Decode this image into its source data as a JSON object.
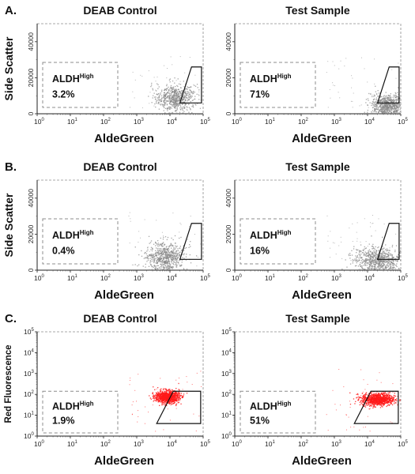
{
  "rows": [
    {
      "row_label": "A.",
      "ylabel": "Side Scatter",
      "yaxis": "linear",
      "panels": [
        {
          "title": "DEAB Control",
          "xlabel": "AldeGreen",
          "gate_label": "ALDH",
          "gate_sup": "High",
          "gate_value": "3.2%"
        },
        {
          "title": "Test Sample",
          "xlabel": "AldeGreen",
          "gate_label": "ALDH",
          "gate_sup": "High",
          "gate_value": "71%"
        }
      ]
    },
    {
      "row_label": "B.",
      "ylabel": "Side Scatter",
      "yaxis": "linear",
      "panels": [
        {
          "title": "DEAB Control",
          "xlabel": "AldeGreen",
          "gate_label": "ALDH",
          "gate_sup": "High",
          "gate_value": "0.4%"
        },
        {
          "title": "Test Sample",
          "xlabel": "AldeGreen",
          "gate_label": "ALDH",
          "gate_sup": "High",
          "gate_value": "16%"
        }
      ]
    },
    {
      "row_label": "C.",
      "ylabel": "Red Fluorescence",
      "yaxis": "log",
      "panels": [
        {
          "title": "DEAB Control",
          "xlabel": "AldeGreen",
          "gate_label": "ALDH",
          "gate_sup": "High",
          "gate_value": "1.9%"
        },
        {
          "title": "Test Sample",
          "xlabel": "AldeGreen",
          "gate_label": "ALDH",
          "gate_sup": "High",
          "gate_value": "51%"
        }
      ]
    }
  ],
  "axes": {
    "x_tick_base": "10",
    "x_tick_exponents": [
      "0",
      "1",
      "2",
      "3",
      "4",
      "5"
    ],
    "y_linear_ticks": [
      "0",
      "20000",
      "40000"
    ],
    "y_log_base": "10",
    "y_log_exponents": [
      "0",
      "1",
      "2",
      "3",
      "4",
      "5"
    ]
  },
  "colors": {
    "scatter_gray": "#8a8a8a",
    "scatter_red": "#ff1a1a",
    "gate_line": "#111111",
    "dashed_box": "#8c8c8c",
    "axis_border": "#8c8c8c"
  },
  "chart_data": [
    {
      "type": "scatter",
      "title": "DEAB Control",
      "xlabel": "AldeGreen",
      "ylabel": "Side Scatter",
      "x_scale": "log",
      "xlim": [
        1,
        100000
      ],
      "ylim": [
        0,
        50000
      ],
      "gate": "ALDHHigh",
      "gate_percent": 3.2,
      "series": [
        {
          "cluster_center": [
            14000,
            9000
          ],
          "spread_log10": 0.28,
          "spread_y": 4000,
          "count": 650
        }
      ]
    },
    {
      "type": "scatter",
      "title": "Test Sample",
      "xlabel": "AldeGreen",
      "ylabel": "Side Scatter",
      "x_scale": "log",
      "xlim": [
        1,
        100000
      ],
      "ylim": [
        0,
        50000
      ],
      "gate": "ALDHHigh",
      "gate_percent": 71,
      "series": [
        {
          "cluster_center": [
            40000,
            5000
          ],
          "spread_log10": 0.25,
          "spread_y": 3000,
          "count": 700
        }
      ]
    },
    {
      "type": "scatter",
      "title": "DEAB Control",
      "xlabel": "AldeGreen",
      "ylabel": "Side Scatter",
      "x_scale": "log",
      "xlim": [
        1,
        100000
      ],
      "ylim": [
        0,
        50000
      ],
      "gate": "ALDHHigh",
      "gate_percent": 0.4,
      "series": [
        {
          "cluster_center": [
            7000,
            8000
          ],
          "spread_log10": 0.3,
          "spread_y": 4000,
          "count": 650
        }
      ]
    },
    {
      "type": "scatter",
      "title": "Test Sample",
      "xlabel": "AldeGreen",
      "ylabel": "Side Scatter",
      "x_scale": "log",
      "xlim": [
        1,
        100000
      ],
      "ylim": [
        0,
        50000
      ],
      "gate": "ALDHHigh",
      "gate_percent": 16,
      "series": [
        {
          "cluster_center": [
            20000,
            6000
          ],
          "spread_log10": 0.35,
          "spread_y": 3500,
          "count": 700
        }
      ]
    },
    {
      "type": "scatter",
      "title": "DEAB Control",
      "xlabel": "AldeGreen",
      "ylabel": "Red Fluorescence",
      "x_scale": "log",
      "y_scale": "log",
      "xlim": [
        1,
        100000
      ],
      "ylim": [
        1,
        100000
      ],
      "gate": "ALDHHigh",
      "gate_percent": 1.9,
      "series": [
        {
          "cluster_center": [
            8000,
            80
          ],
          "spread_log10": 0.18,
          "spread_y_log10": 0.15,
          "count": 900
        }
      ]
    },
    {
      "type": "scatter",
      "title": "Test Sample",
      "xlabel": "AldeGreen",
      "ylabel": "Red Fluorescence",
      "x_scale": "log",
      "y_scale": "log",
      "xlim": [
        1,
        100000
      ],
      "ylim": [
        1,
        100000
      ],
      "gate": "ALDHHigh",
      "gate_percent": 51,
      "series": [
        {
          "cluster_center": [
            20000,
            60
          ],
          "spread_log10": 0.25,
          "spread_y_log10": 0.15,
          "count": 900
        }
      ]
    }
  ]
}
